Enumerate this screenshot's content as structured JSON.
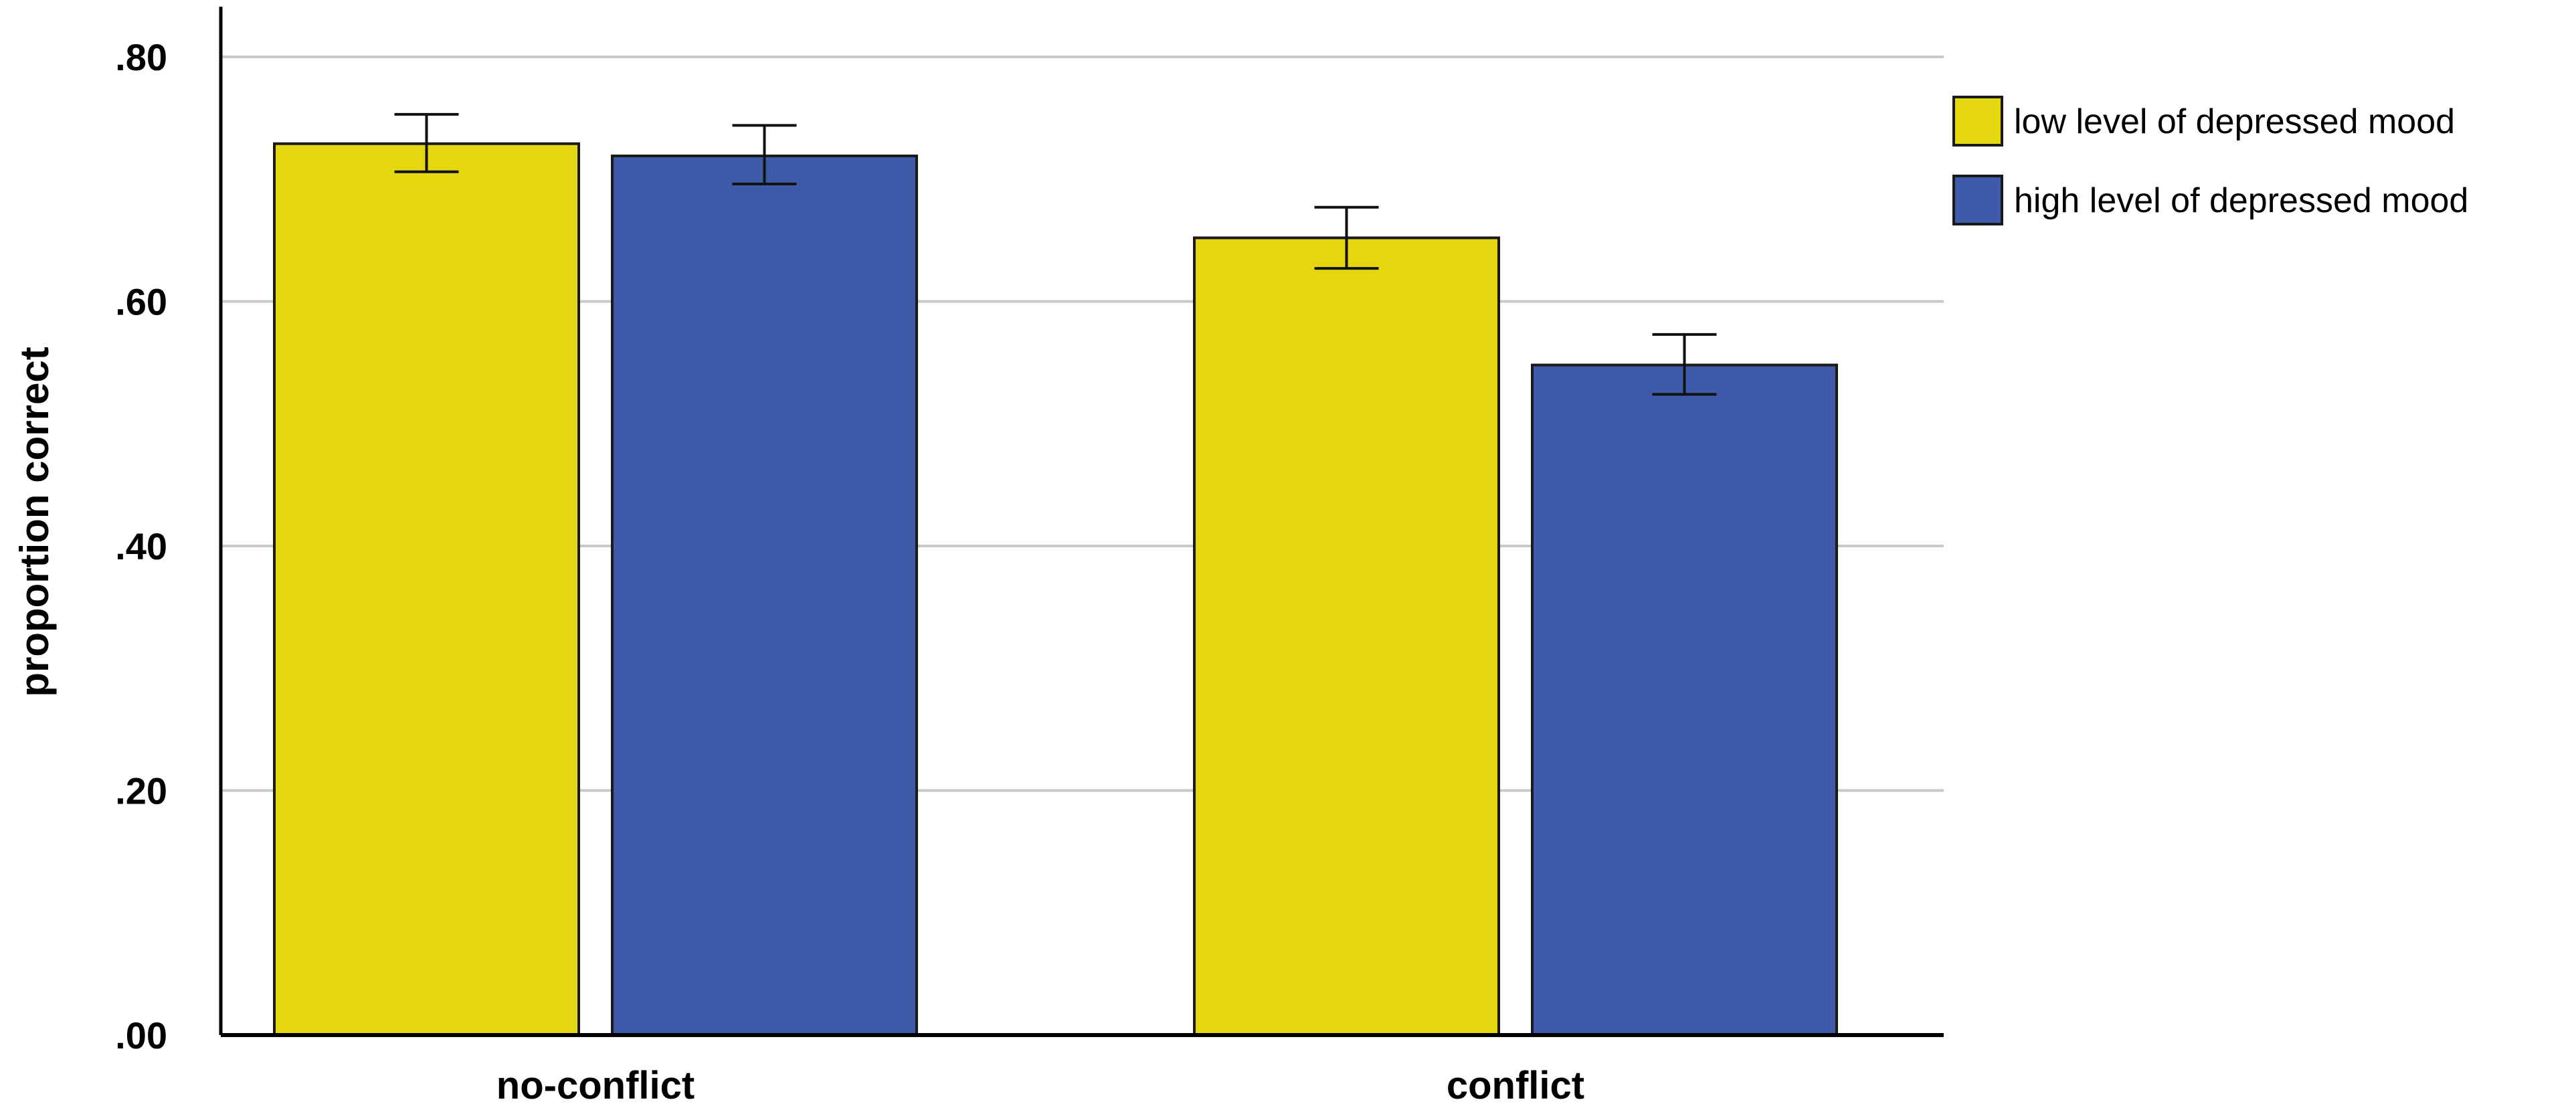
{
  "chart_data": {
    "type": "bar",
    "title": "",
    "xlabel": "",
    "ylabel": "proportion correct",
    "ylim": [
      0,
      0.84
    ],
    "yticks": [
      0,
      0.2,
      0.4,
      0.6,
      0.8
    ],
    "ytick_labels": [
      ".00",
      ".20",
      ".40",
      ".60",
      ".80"
    ],
    "grid": true,
    "legend_position": "top-right",
    "categories": [
      "no-conflict",
      "conflict"
    ],
    "series": [
      {
        "name": "low level of depressed mood",
        "color": "#e5d70f",
        "values": [
          0.729,
          0.652
        ],
        "error_low": [
          0.706,
          0.627
        ],
        "error_high": [
          0.753,
          0.677
        ]
      },
      {
        "name": "high level of depressed mood",
        "color": "#3e5aa8",
        "values": [
          0.719,
          0.548
        ],
        "error_low": [
          0.696,
          0.524
        ],
        "error_high": [
          0.744,
          0.573
        ]
      }
    ]
  }
}
